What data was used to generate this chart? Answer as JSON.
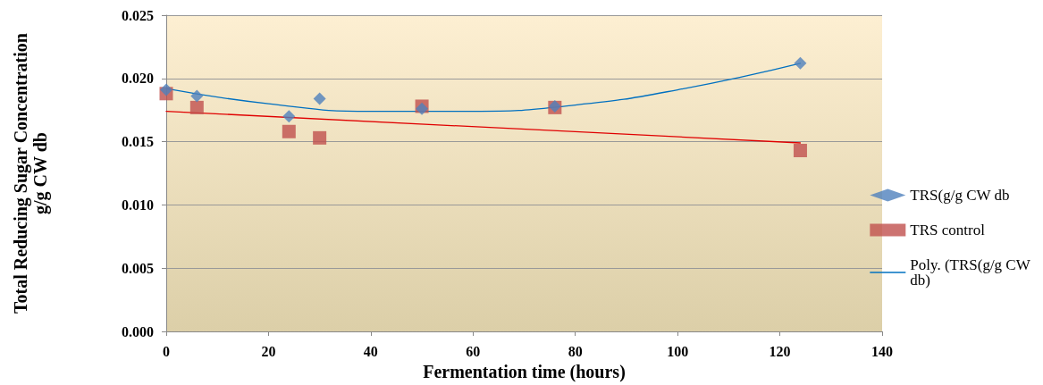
{
  "chart_data": {
    "type": "scatter",
    "xlabel": "Fermentation time (hours)",
    "ylabel": "Total Reducing Sugar Concentration\ng/g CW db",
    "xlim": [
      0,
      140
    ],
    "xticks": [
      0,
      20,
      40,
      60,
      80,
      100,
      120,
      140
    ],
    "ylim": [
      0,
      0.025
    ],
    "yticks": [
      {
        "value": 0,
        "label": "0.000"
      },
      {
        "value": 0.005,
        "label": "0.005"
      },
      {
        "value": 0.01,
        "label": "0.010"
      },
      {
        "value": 0.015,
        "label": "0.015"
      },
      {
        "value": 0.02,
        "label": "0.020"
      },
      {
        "value": 0.025,
        "label": "0.025"
      }
    ],
    "grid": "y",
    "legend": "right",
    "series": [
      {
        "name": "TRS(g/g CW db",
        "type": "scatter",
        "marker": "diamond",
        "color": "#4f81bd",
        "x": [
          0,
          6,
          24,
          30,
          50,
          76,
          124
        ],
        "values": [
          0.0191,
          0.0186,
          0.017,
          0.0184,
          0.0176,
          0.0178,
          0.0212
        ]
      },
      {
        "name": "TRS control",
        "type": "scatter",
        "marker": "square",
        "color": "#c0504d",
        "x": [
          0,
          6,
          24,
          30,
          50,
          76,
          124
        ],
        "values": [
          0.0188,
          0.0177,
          0.0158,
          0.0153,
          0.0178,
          0.0177,
          0.0143
        ]
      },
      {
        "name": "Poly. (TRS(g/g CW db)",
        "type": "line",
        "marker": "none",
        "color": "#0070c0",
        "x": [
          0,
          20,
          40,
          60,
          80,
          100,
          124
        ],
        "values": [
          0.0192,
          0.018,
          0.0174,
          0.0174,
          0.0179,
          0.0191,
          0.0212
        ]
      },
      {
        "type": "line",
        "marker": "none",
        "color": "#e00000",
        "x": [
          0,
          124
        ],
        "values": [
          0.0174,
          0.0149
        ]
      }
    ]
  }
}
